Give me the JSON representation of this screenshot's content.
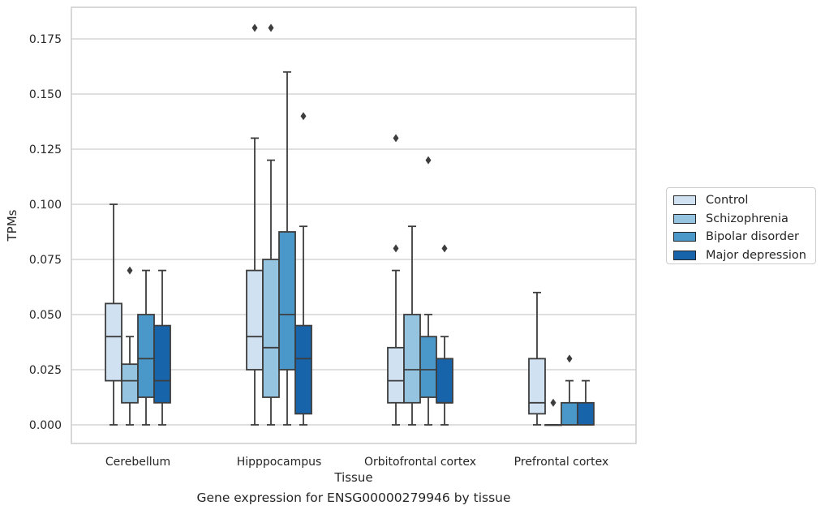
{
  "chart_data": {
    "type": "boxplot",
    "xlabel": "Tissue",
    "ylabel": "TPMs",
    "caption": "Gene expression for ENSG00000279946 by tissue",
    "ylim": [
      -0.007,
      0.182
    ],
    "yticks": [
      "0.000",
      "0.025",
      "0.050",
      "0.075",
      "0.100",
      "0.125",
      "0.150",
      "0.175"
    ],
    "ytick_values": [
      0,
      0.025,
      0.05,
      0.075,
      0.1,
      0.125,
      0.15,
      0.175
    ],
    "grid": "horizontal",
    "legend_position": "right",
    "categories": [
      "Cerebellum",
      "Hipppocampus",
      "Orbitofrontal cortex",
      "Prefrontal cortex"
    ],
    "series": [
      {
        "name": "Control",
        "color": "#d0e1f2",
        "boxes": [
          {
            "min": 0,
            "q1": 0.02,
            "median": 0.04,
            "q3": 0.055,
            "max": 0.1,
            "outliers": []
          },
          {
            "min": 0,
            "q1": 0.025,
            "median": 0.04,
            "q3": 0.07,
            "max": 0.13,
            "outliers": [
              0.18
            ]
          },
          {
            "min": 0,
            "q1": 0.01,
            "median": 0.02,
            "q3": 0.035,
            "max": 0.07,
            "outliers": [
              0.08,
              0.13
            ]
          },
          {
            "min": 0,
            "q1": 0.005,
            "median": 0.01,
            "q3": 0.03,
            "max": 0.06,
            "outliers": []
          }
        ]
      },
      {
        "name": "Schizophrenia",
        "color": "#94c4df",
        "boxes": [
          {
            "min": 0,
            "q1": 0.01,
            "median": 0.02,
            "q3": 0.0275,
            "max": 0.04,
            "outliers": [
              0.07
            ]
          },
          {
            "min": 0,
            "q1": 0.0125,
            "median": 0.035,
            "q3": 0.075,
            "max": 0.12,
            "outliers": [
              0.18
            ]
          },
          {
            "min": 0,
            "q1": 0.01,
            "median": 0.025,
            "q3": 0.05,
            "max": 0.09,
            "outliers": []
          },
          {
            "min": 0,
            "q1": 0,
            "median": 0,
            "q3": 0,
            "max": 0,
            "outliers": [
              0.01
            ]
          }
        ]
      },
      {
        "name": "Bipolar disorder",
        "color": "#4a98c9",
        "boxes": [
          {
            "min": 0,
            "q1": 0.0125,
            "median": 0.03,
            "q3": 0.05,
            "max": 0.07,
            "outliers": []
          },
          {
            "min": 0,
            "q1": 0.025,
            "median": 0.05,
            "q3": 0.0875,
            "max": 0.16,
            "outliers": []
          },
          {
            "min": 0,
            "q1": 0.0125,
            "median": 0.025,
            "q3": 0.04,
            "max": 0.05,
            "outliers": [
              0.12
            ]
          },
          {
            "min": 0,
            "q1": 0,
            "median": 0,
            "q3": 0.01,
            "max": 0.02,
            "outliers": [
              0.03
            ]
          }
        ]
      },
      {
        "name": "Major depression",
        "color": "#1764ab",
        "boxes": [
          {
            "min": 0,
            "q1": 0.01,
            "median": 0.02,
            "q3": 0.045,
            "max": 0.07,
            "outliers": []
          },
          {
            "min": 0,
            "q1": 0.005,
            "median": 0.03,
            "q3": 0.045,
            "max": 0.09,
            "outliers": [
              0.14
            ]
          },
          {
            "min": 0,
            "q1": 0.01,
            "median": 0.01,
            "q3": 0.03,
            "max": 0.04,
            "outliers": [
              0.08
            ]
          },
          {
            "min": 0,
            "q1": 0,
            "median": 0,
            "q3": 0.01,
            "max": 0.02,
            "outliers": []
          }
        ]
      }
    ],
    "colors": {
      "line": "#3d3d3d",
      "grid": "#cccccc",
      "frame": "#cccccc"
    }
  }
}
